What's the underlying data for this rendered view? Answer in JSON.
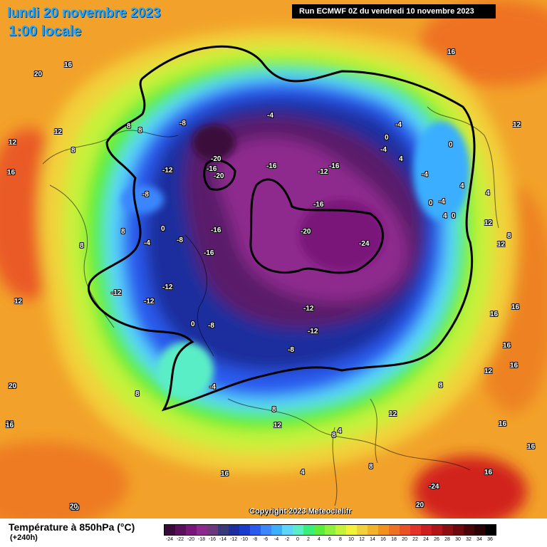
{
  "header": {
    "date": "lundi 20 novembre 2023",
    "time": "1:00 locale",
    "run": "Run ECMWF 0Z du vendredi 10 novembre 2023"
  },
  "footer": {
    "copyright": "Copyright 2023 Meteociel.fr",
    "legend_title": "Température à 850hPa (°C)",
    "legend_subtitle": "(+240h)"
  },
  "legend": {
    "ticks": [
      "-24",
      "-22",
      "-20",
      "-18",
      "-16",
      "-14",
      "-12",
      "-10",
      "-8",
      "-6",
      "-4",
      "-2",
      "0",
      "2",
      "4",
      "6",
      "8",
      "10",
      "12",
      "14",
      "16",
      "18",
      "20",
      "22",
      "24",
      "26",
      "28",
      "30",
      "32",
      "34",
      "36"
    ],
    "colors": [
      "#3a0a3a",
      "#5a0f5a",
      "#7a167a",
      "#8e2a8e",
      "#6a3a7a",
      "#3a3a7a",
      "#1e2e9e",
      "#1a3ccc",
      "#2a5aee",
      "#3a86ff",
      "#3aaeff",
      "#5ad6ff",
      "#5aeec6",
      "#3aee7a",
      "#5aee3a",
      "#8ef23a",
      "#c6f23a",
      "#f2f23a",
      "#f2d23a",
      "#f2b22a",
      "#f2921a",
      "#ee7222",
      "#ea5226",
      "#e2322a",
      "#ce1e22",
      "#b2141a",
      "#8e0e12",
      "#6e080c",
      "#4a0408",
      "#2a0204",
      "#000000"
    ]
  },
  "map_labels": [
    {
      "text": "16"
    },
    {
      "text": "20"
    },
    {
      "text": "12"
    },
    {
      "text": "12"
    },
    {
      "text": "16"
    },
    {
      "text": "8"
    },
    {
      "text": "16"
    },
    {
      "text": "12"
    },
    {
      "text": "8"
    },
    {
      "text": "8"
    },
    {
      "text": "-8"
    },
    {
      "text": "-12"
    },
    {
      "text": "-8"
    },
    {
      "text": "-8"
    },
    {
      "text": "0"
    },
    {
      "text": "-4"
    },
    {
      "text": "8"
    },
    {
      "text": "8"
    },
    {
      "text": "-20"
    },
    {
      "text": "-16"
    },
    {
      "text": "-20"
    },
    {
      "text": "-16"
    },
    {
      "text": "-16"
    },
    {
      "text": "-16"
    },
    {
      "text": "-12"
    },
    {
      "text": "-16"
    },
    {
      "text": "-16"
    },
    {
      "text": "-20"
    },
    {
      "text": "-24"
    },
    {
      "text": "-4"
    },
    {
      "text": "0"
    },
    {
      "text": "-4"
    },
    {
      "text": "-4"
    },
    {
      "text": "0"
    },
    {
      "text": "4"
    },
    {
      "text": "-4"
    },
    {
      "text": "4"
    },
    {
      "text": "0"
    },
    {
      "text": "4"
    },
    {
      "text": "4"
    },
    {
      "text": "-4"
    },
    {
      "text": "0"
    },
    {
      "text": "12"
    },
    {
      "text": "12"
    },
    {
      "text": "8"
    },
    {
      "text": "12"
    },
    {
      "text": "-12"
    },
    {
      "text": "-12"
    },
    {
      "text": "-12"
    },
    {
      "text": "-12"
    },
    {
      "text": "-12"
    },
    {
      "text": "0"
    },
    {
      "text": "-8"
    },
    {
      "text": "-8"
    },
    {
      "text": "-4"
    },
    {
      "text": "8"
    },
    {
      "text": "16"
    },
    {
      "text": "16"
    },
    {
      "text": "16"
    },
    {
      "text": "12"
    },
    {
      "text": "8"
    },
    {
      "text": "12"
    },
    {
      "text": "8"
    },
    {
      "text": "12"
    },
    {
      "text": "8"
    },
    {
      "text": "4"
    },
    {
      "text": "16"
    },
    {
      "text": "20"
    },
    {
      "text": "16"
    },
    {
      "text": "20"
    },
    {
      "text": "-24"
    },
    {
      "text": "16"
    },
    {
      "text": "16"
    },
    {
      "text": "20"
    },
    {
      "text": "16"
    },
    {
      "text": "4"
    },
    {
      "text": "8"
    },
    {
      "text": "16"
    },
    {
      "text": "20"
    },
    {
      "text": "16"
    }
  ]
}
